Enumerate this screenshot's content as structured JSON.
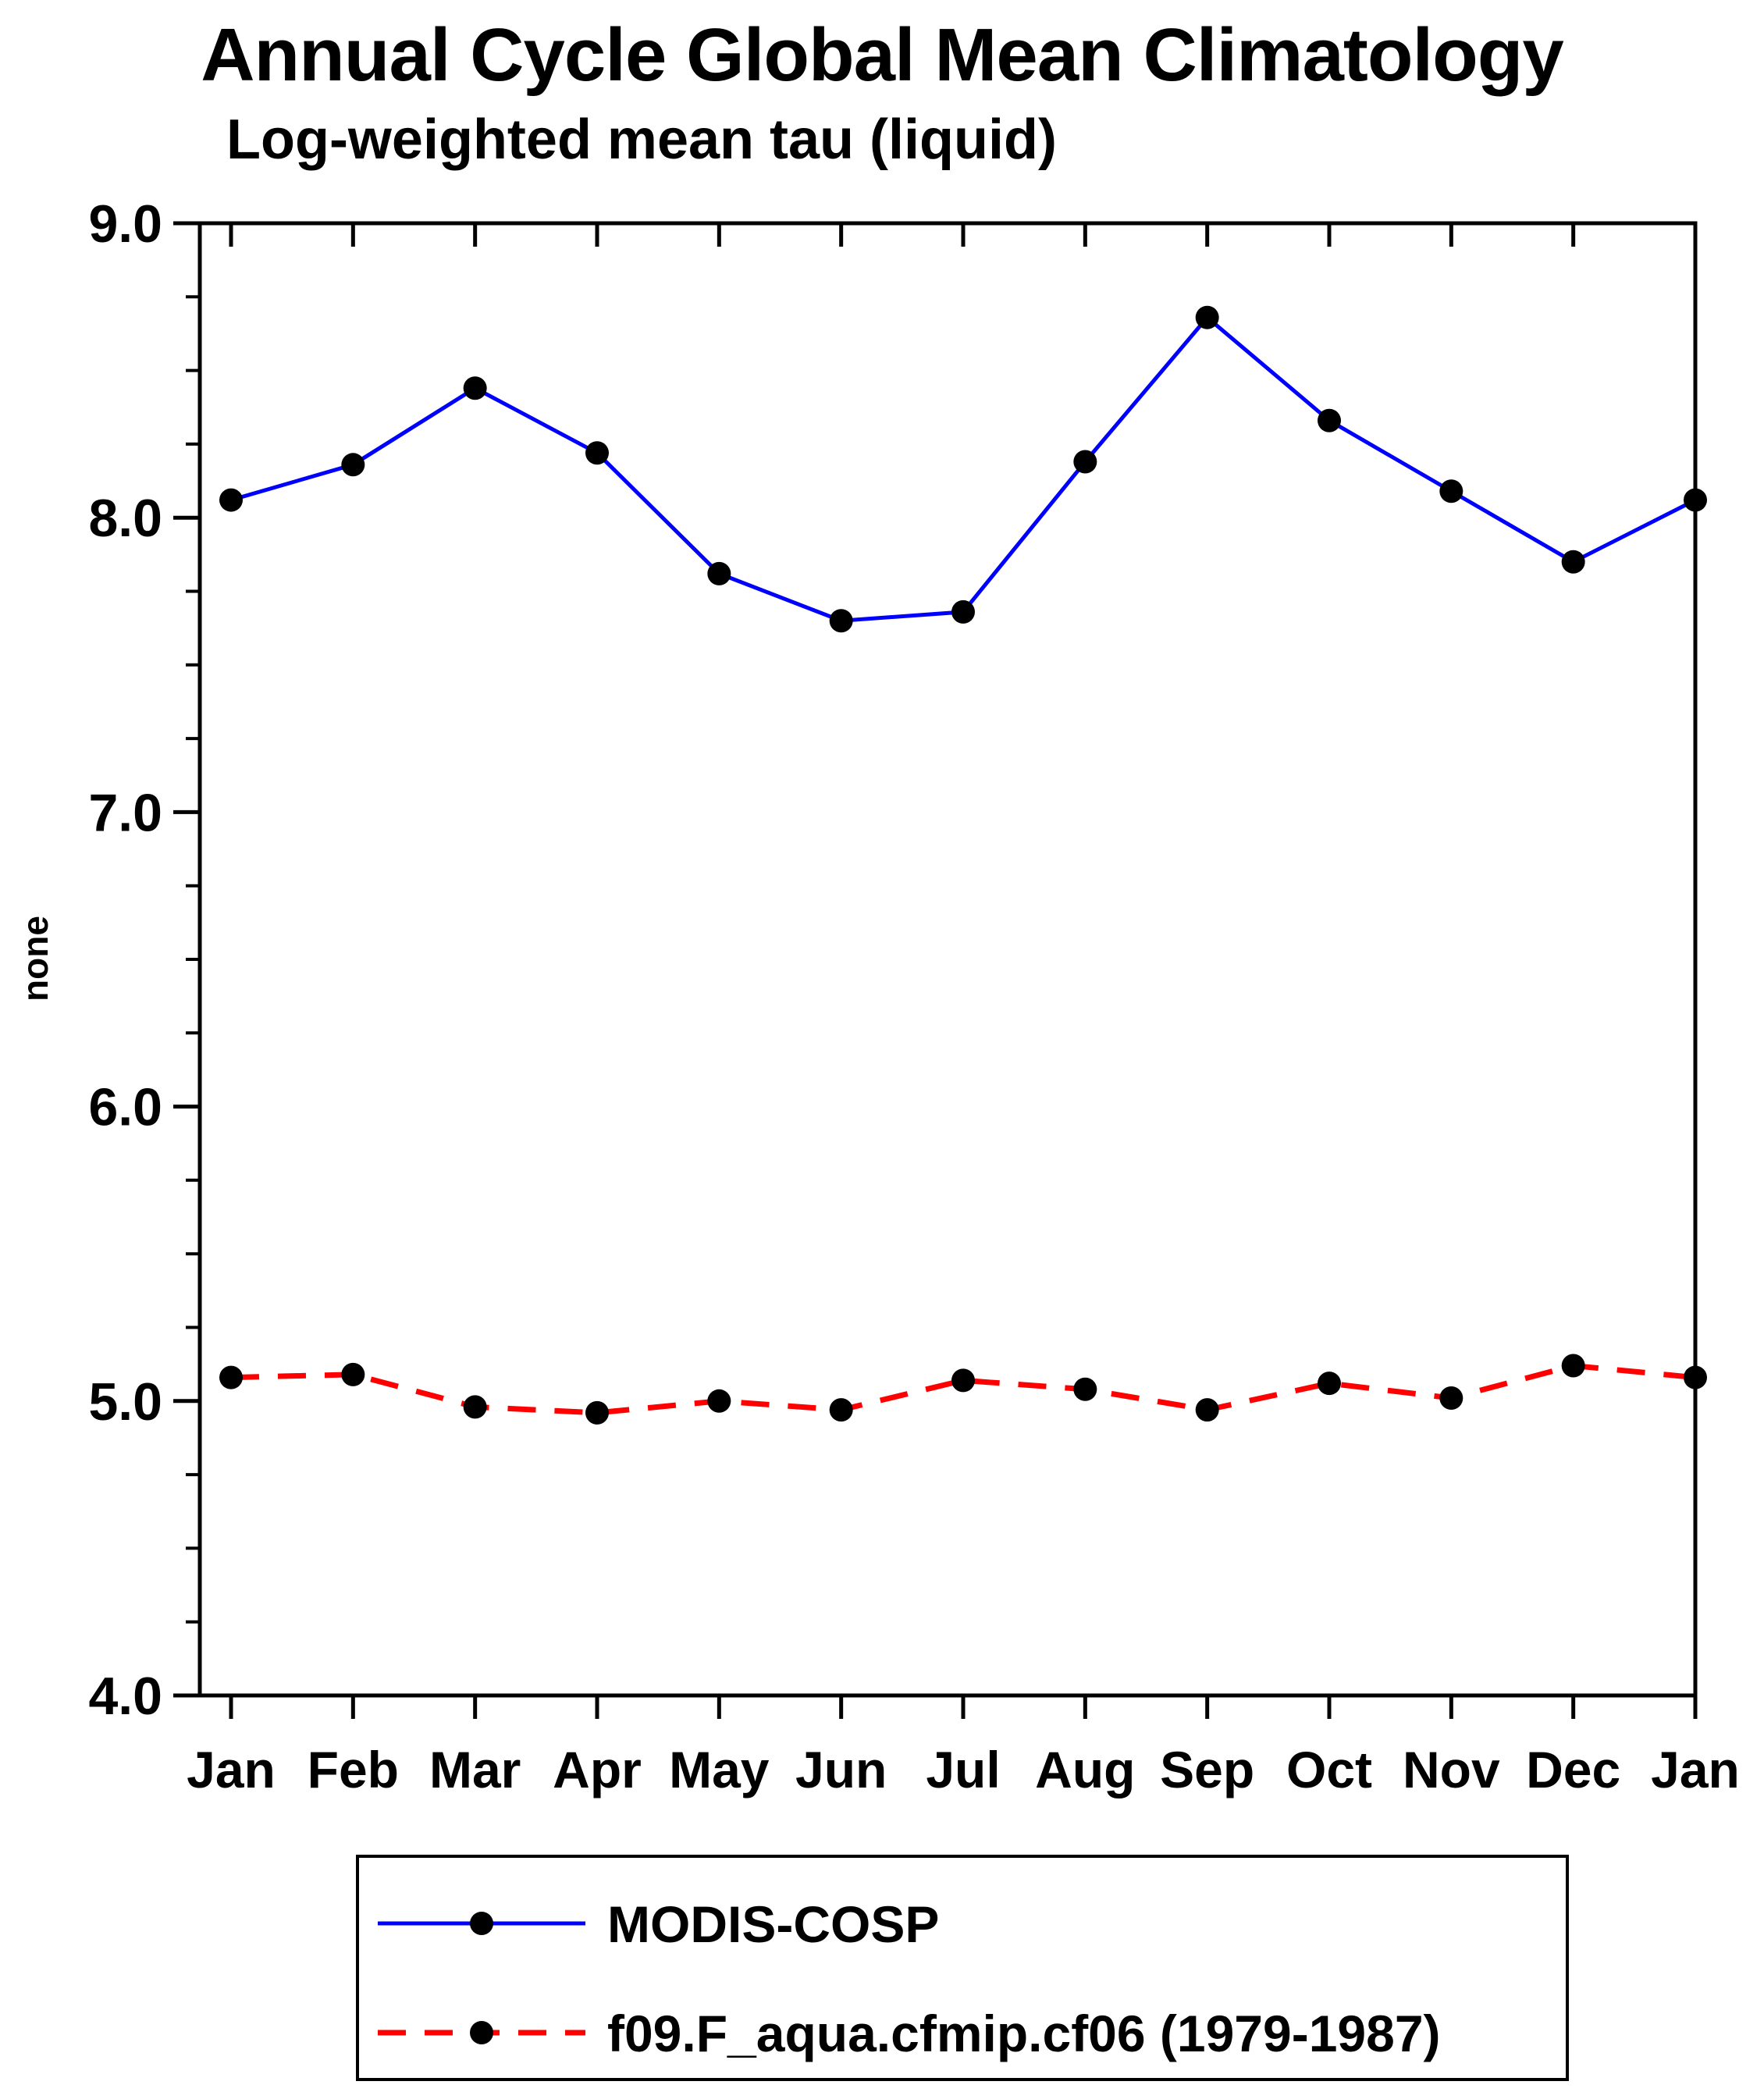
{
  "chart_data": {
    "type": "line",
    "title": "Annual Cycle Global Mean Climatology",
    "subtitle": "Log-weighted mean tau (liquid)",
    "ylabel": "none",
    "xlabel": "",
    "categories": [
      "Jan",
      "Feb",
      "Mar",
      "Apr",
      "May",
      "Jun",
      "Jul",
      "Aug",
      "Sep",
      "Oct",
      "Nov",
      "Dec",
      "Jan"
    ],
    "ylim": [
      4.0,
      9.0
    ],
    "ytick_step": 1.0,
    "ytick_labels": [
      "4.0",
      "5.0",
      "6.0",
      "7.0",
      "8.0",
      "9.0"
    ],
    "grid": false,
    "legend_position": "bottom",
    "axis_color": "#000000",
    "series": [
      {
        "name": "MODIS-COSP",
        "color": "#0000ff",
        "style": "solid",
        "marker_color": "#000000",
        "values": [
          8.06,
          8.18,
          8.44,
          8.22,
          7.81,
          7.65,
          7.68,
          8.19,
          8.68,
          8.33,
          8.09,
          7.85,
          8.06
        ]
      },
      {
        "name": "f09.F_aqua.cfmip.cf06 (1979-1987)",
        "color": "#ff0000",
        "style": "dashed",
        "marker_color": "#000000",
        "values": [
          5.08,
          5.09,
          4.98,
          4.96,
          5.0,
          4.97,
          5.07,
          5.04,
          4.97,
          5.06,
          5.01,
          5.12,
          5.08
        ]
      }
    ]
  }
}
